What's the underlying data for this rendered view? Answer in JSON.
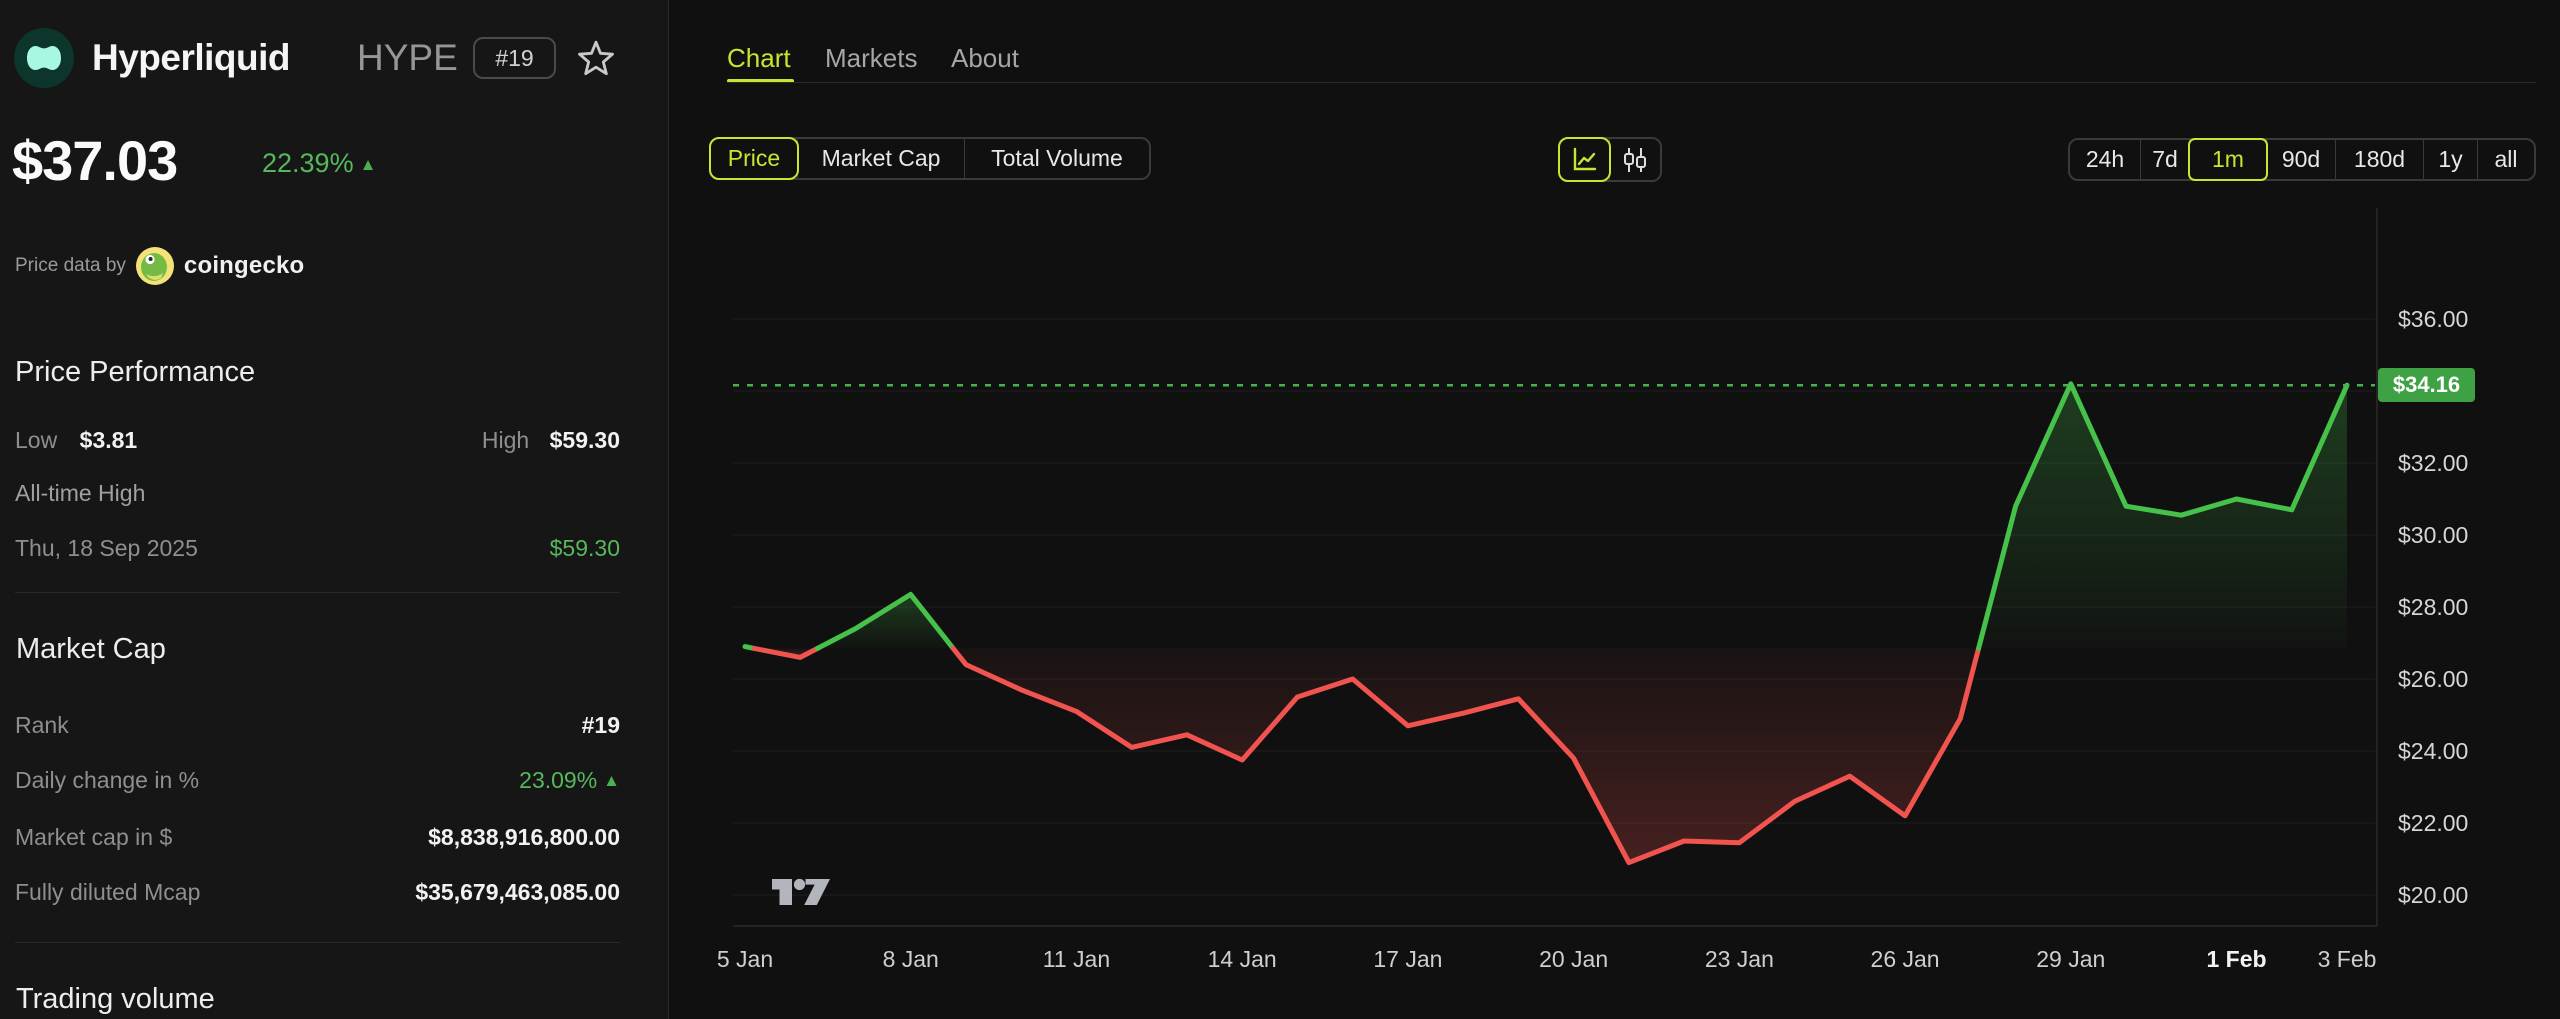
{
  "header": {
    "title": "Hyperliquid",
    "symbol": "HYPE",
    "rank_badge": "#19"
  },
  "price": {
    "value": "$37.03",
    "change": "22.39%",
    "change_dir": "▲"
  },
  "attribution": {
    "prefix": "Price data by",
    "brand": "coingecko"
  },
  "price_performance": {
    "heading": "Price Performance",
    "low_label": "Low",
    "low_value": "$3.81",
    "high_label": "High",
    "high_value": "$59.30",
    "ath_label": "All-time High",
    "ath_date": "Thu, 18 Sep 2025",
    "ath_value": "$59.30"
  },
  "market_cap": {
    "heading": "Market Cap",
    "rows": [
      {
        "label": "Rank",
        "value": "#19"
      },
      {
        "label": "Daily change in %",
        "value": "23.09%",
        "suffix": "▲"
      },
      {
        "label": "Market cap in $",
        "value": "$8,838,916,800.00"
      },
      {
        "label": "Fully diluted Mcap",
        "value": "$35,679,463,085.00"
      }
    ]
  },
  "trading_volume": {
    "heading": "Trading volume"
  },
  "tabs": [
    {
      "label": "Chart",
      "active": true
    },
    {
      "label": "Markets",
      "active": false
    },
    {
      "label": "About",
      "active": false
    }
  ],
  "metric_toggle": {
    "price": "Price",
    "market_cap": "Market Cap",
    "total_volume": "Total Volume"
  },
  "ranges": {
    "r24h": "24h",
    "r7d": "7d",
    "r1m": "1m",
    "r90d": "90d",
    "r180d": "180d",
    "r1y": "1y",
    "rall": "all"
  },
  "chart_data": {
    "type": "line",
    "title": "HYPE price, 1 month",
    "x": [
      "5 Jan",
      "6 Jan",
      "7 Jan",
      "8 Jan",
      "9 Jan",
      "10 Jan",
      "11 Jan",
      "12 Jan",
      "13 Jan",
      "14 Jan",
      "15 Jan",
      "16 Jan",
      "17 Jan",
      "18 Jan",
      "19 Jan",
      "20 Jan",
      "21 Jan",
      "22 Jan",
      "23 Jan",
      "24 Jan",
      "25 Jan",
      "26 Jan",
      "27 Jan",
      "28 Jan",
      "29 Jan",
      "30 Jan",
      "31 Jan",
      "1 Feb",
      "2 Feb",
      "3 Feb"
    ],
    "values": [
      26.9,
      26.6,
      27.4,
      28.35,
      26.4,
      25.7,
      25.1,
      24.1,
      24.45,
      23.75,
      25.5,
      26.0,
      24.7,
      25.05,
      25.45,
      23.8,
      20.9,
      21.5,
      21.45,
      22.6,
      23.3,
      22.2,
      24.9,
      30.8,
      34.2,
      30.8,
      30.55,
      31.0,
      30.7,
      34.16
    ],
    "baseline": 26.85,
    "current": {
      "value": 34.16,
      "label": "$34.16"
    },
    "y_axis": {
      "min": 20,
      "max": 36,
      "step": 2,
      "labels": [
        {
          "value": 36,
          "label": "$36.00"
        },
        {
          "value": 32,
          "label": "$32.00"
        },
        {
          "value": 30,
          "label": "$30.00"
        },
        {
          "value": 28,
          "label": "$28.00"
        },
        {
          "value": 26,
          "label": "$26.00"
        },
        {
          "value": 24,
          "label": "$24.00"
        },
        {
          "value": 22,
          "label": "$22.00"
        },
        {
          "value": 20,
          "label": "$20.00"
        }
      ],
      "gridlines": [
        36,
        34,
        32,
        30,
        28,
        26,
        24,
        22,
        20
      ]
    },
    "x_axis": {
      "ticks": [
        {
          "label": "5 Jan",
          "index": 0
        },
        {
          "label": "8 Jan",
          "index": 3
        },
        {
          "label": "11 Jan",
          "index": 6
        },
        {
          "label": "14 Jan",
          "index": 9
        },
        {
          "label": "17 Jan",
          "index": 12
        },
        {
          "label": "20 Jan",
          "index": 15
        },
        {
          "label": "23 Jan",
          "index": 18
        },
        {
          "label": "26 Jan",
          "index": 21
        },
        {
          "label": "29 Jan",
          "index": 24
        },
        {
          "label": "1 Feb",
          "index": 27,
          "bold": true
        },
        {
          "label": "3 Feb",
          "index": 29
        }
      ]
    },
    "legend": "none",
    "grid": true,
    "colors": {
      "up": "#46c24a",
      "down": "#f1544f",
      "dotted": "#49b24f",
      "badge": "#3ea144",
      "gridline": "#1e1e1e",
      "axis": "#2a2a2a"
    }
  }
}
